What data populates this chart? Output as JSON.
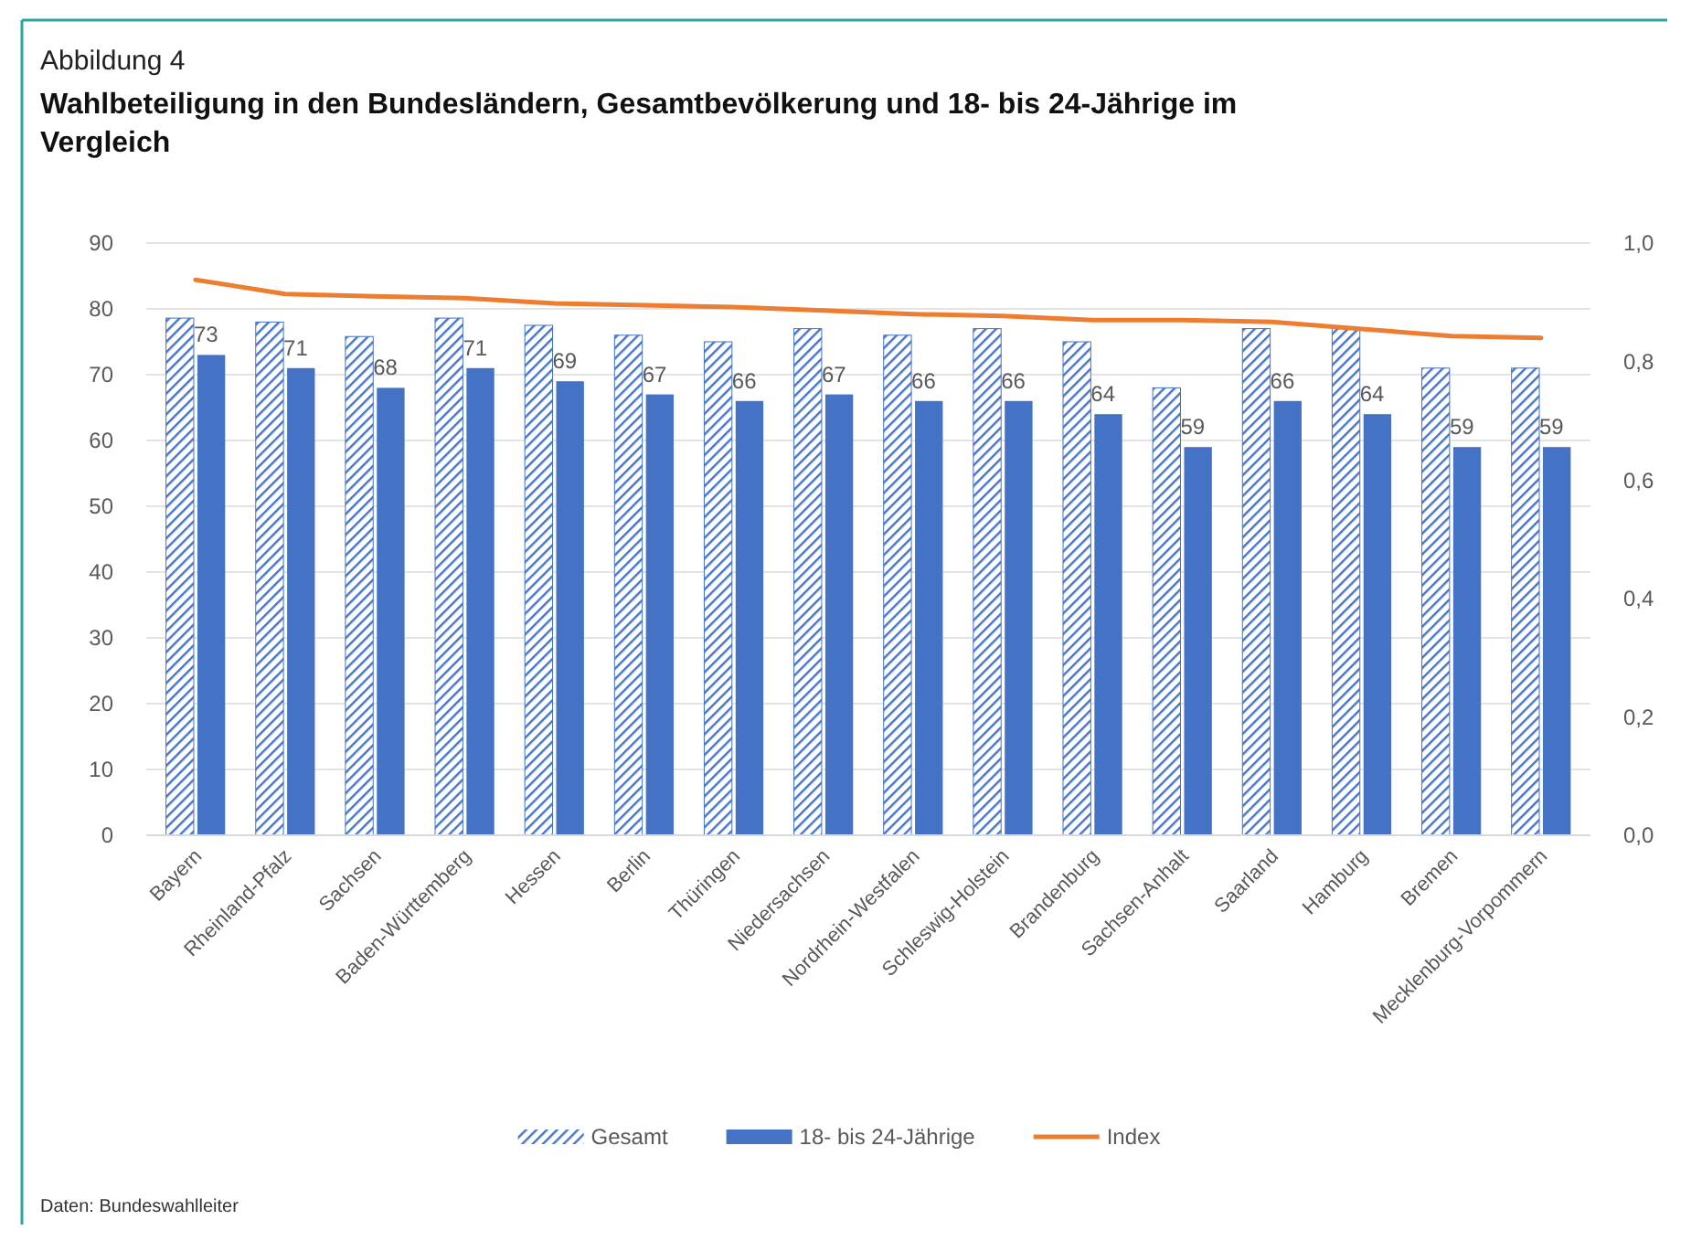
{
  "chart_data": {
    "type": "bar",
    "title": "Wahlbeteiligung in den Bundesländern, Gesamtbevölkerung und 18- bis 24-Jährige im Vergleich",
    "annotations": [
      "Abbildung 4",
      "Daten: Bundeswahlleiter"
    ],
    "categories": [
      "Bayern",
      "Rheinland-Pfalz",
      "Sachsen",
      "Baden-Württemberg",
      "Hessen",
      "Berlin",
      "Thüringen",
      "Niedersachsen",
      "Nordrhein-Westfalen",
      "Schleswig-Holstein",
      "Brandenburg",
      "Sachsen-Anhalt",
      "Saarland",
      "Hamburg",
      "Bremen",
      "Mecklenburg-Vorpommern"
    ],
    "series": [
      {
        "name": "Gesamt",
        "color": "#4472c4",
        "values": [
          78.6,
          78,
          75.8,
          78.6,
          77.5,
          76,
          75,
          77,
          76,
          77,
          75,
          68,
          77,
          77,
          71,
          71
        ]
      },
      {
        "name": "18- bis 24-Jährige",
        "color": "#4472c4",
        "values": [
          73,
          71,
          68,
          71,
          69,
          67,
          66,
          67,
          66,
          66,
          64,
          59,
          66,
          64,
          59,
          59
        ],
        "value_labels": [
          "73",
          "71",
          "68",
          "71",
          "69",
          "67",
          "66",
          "67",
          "66",
          "66",
          "64",
          "59",
          "66",
          "64",
          "59",
          "59"
        ]
      },
      {
        "name": "Index",
        "type": "line",
        "axis": "y2",
        "color": "#ed7d31",
        "values": [
          0.938,
          0.914,
          0.91,
          0.907,
          0.898,
          0.895,
          0.892,
          0.886,
          0.88,
          0.877,
          0.87,
          0.87,
          0.867,
          0.855,
          0.843,
          0.84
        ]
      }
    ],
    "ylim": [
      0,
      90
    ],
    "yticks": [
      0,
      10,
      20,
      30,
      40,
      50,
      60,
      70,
      80,
      90
    ],
    "y2lim": [
      0,
      1
    ],
    "y2ticks": [
      {
        "value": 0,
        "label": "0,0"
      },
      {
        "value": 0.2,
        "label": "0,2"
      },
      {
        "value": 0.4,
        "label": "0,4"
      },
      {
        "value": 0.6,
        "label": "0,6"
      },
      {
        "value": 0.8,
        "label": "0,8"
      },
      {
        "value": 1,
        "label": "1,0"
      }
    ],
    "grid": "y",
    "legend": "bottom",
    "marker": "none",
    "line_style": "solid"
  }
}
